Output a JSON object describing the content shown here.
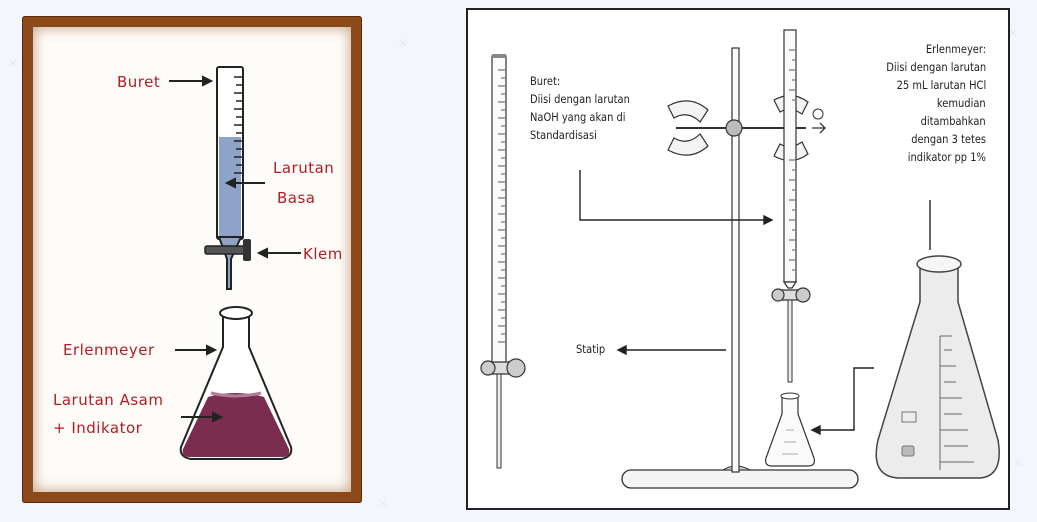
{
  "left_diagram": {
    "buret": "Buret",
    "larutan_basa_line1": "Larutan",
    "larutan_basa_line2": "Basa",
    "klem": "Klem",
    "erlenmeyer": "Erlenmeyer",
    "larutan_asam_line1": "Larutan Asam",
    "larutan_asam_line2": "+ Indikator"
  },
  "right_diagram": {
    "buret_line1": "Buret:",
    "buret_line2": "Diisi dengan larutan",
    "buret_line3": "NaOH yang akan di",
    "buret_line4": "Standardisasi",
    "statip": "Statip",
    "erlenmeyer_line1": "Erlenmeyer:",
    "erlenmeyer_line2": "Diisi dengan larutan",
    "erlenmeyer_line3": "25 mL larutan HCl",
    "erlenmeyer_line4": "kemudian",
    "erlenmeyer_line5": "ditambahkan",
    "erlenmeyer_line6": "dengan 3 tetes",
    "erlenmeyer_line7": "indikator pp 1%"
  },
  "colors": {
    "frame": "#8c4a1a",
    "base_solution": "#8ea3c8",
    "acid_solution": "#7a2d4f",
    "label_red": "#b01e24"
  }
}
